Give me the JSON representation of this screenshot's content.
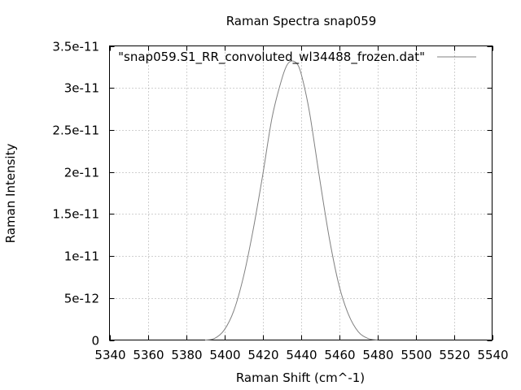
{
  "chart_data": {
    "type": "line",
    "title": "Raman Spectra snap059",
    "xlabel": "Raman Shift (cm^-1)",
    "ylabel": "Raman Intensity",
    "xlim": [
      5340,
      5540
    ],
    "ylim": [
      0,
      3.5e-11
    ],
    "x_ticks": [
      5340,
      5360,
      5380,
      5400,
      5420,
      5440,
      5460,
      5480,
      5500,
      5520,
      5540
    ],
    "x_tick_labels": [
      "5340",
      "5360",
      "5380",
      "5400",
      "5420",
      "5440",
      "5460",
      "5480",
      "5500",
      "5520",
      "5540"
    ],
    "y_ticks": [
      0,
      5e-12,
      1e-11,
      1.5e-11,
      2e-11,
      2.5e-11,
      3e-11,
      3.5e-11
    ],
    "y_tick_labels": [
      "0",
      "5e-12",
      "1e-11",
      "1.5e-11",
      "2e-11",
      "2.5e-11",
      "3e-11",
      "3.5e-11"
    ],
    "grid": true,
    "legend_position": "top-right",
    "series": [
      {
        "name": "\"snap059.S1_RR_convoluted_wl34488_frozen.dat\"",
        "color": "#808080",
        "x": [
          5390,
          5395,
          5400,
          5405,
          5410,
          5415,
          5420,
          5425,
          5430,
          5433,
          5436,
          5439,
          5442,
          5445,
          5450,
          5455,
          5460,
          5465,
          5470,
          5475,
          5480
        ],
        "y": [
          0,
          2e-13,
          1.2e-12,
          3.5e-12,
          7.5e-12,
          1.3e-11,
          1.95e-11,
          2.65e-11,
          3.1e-11,
          3.28e-11,
          3.32e-11,
          3.25e-11,
          3e-11,
          2.65e-11,
          1.9e-11,
          1.2e-11,
          6.5e-12,
          3e-12,
          1e-12,
          2e-13,
          0
        ]
      }
    ]
  }
}
